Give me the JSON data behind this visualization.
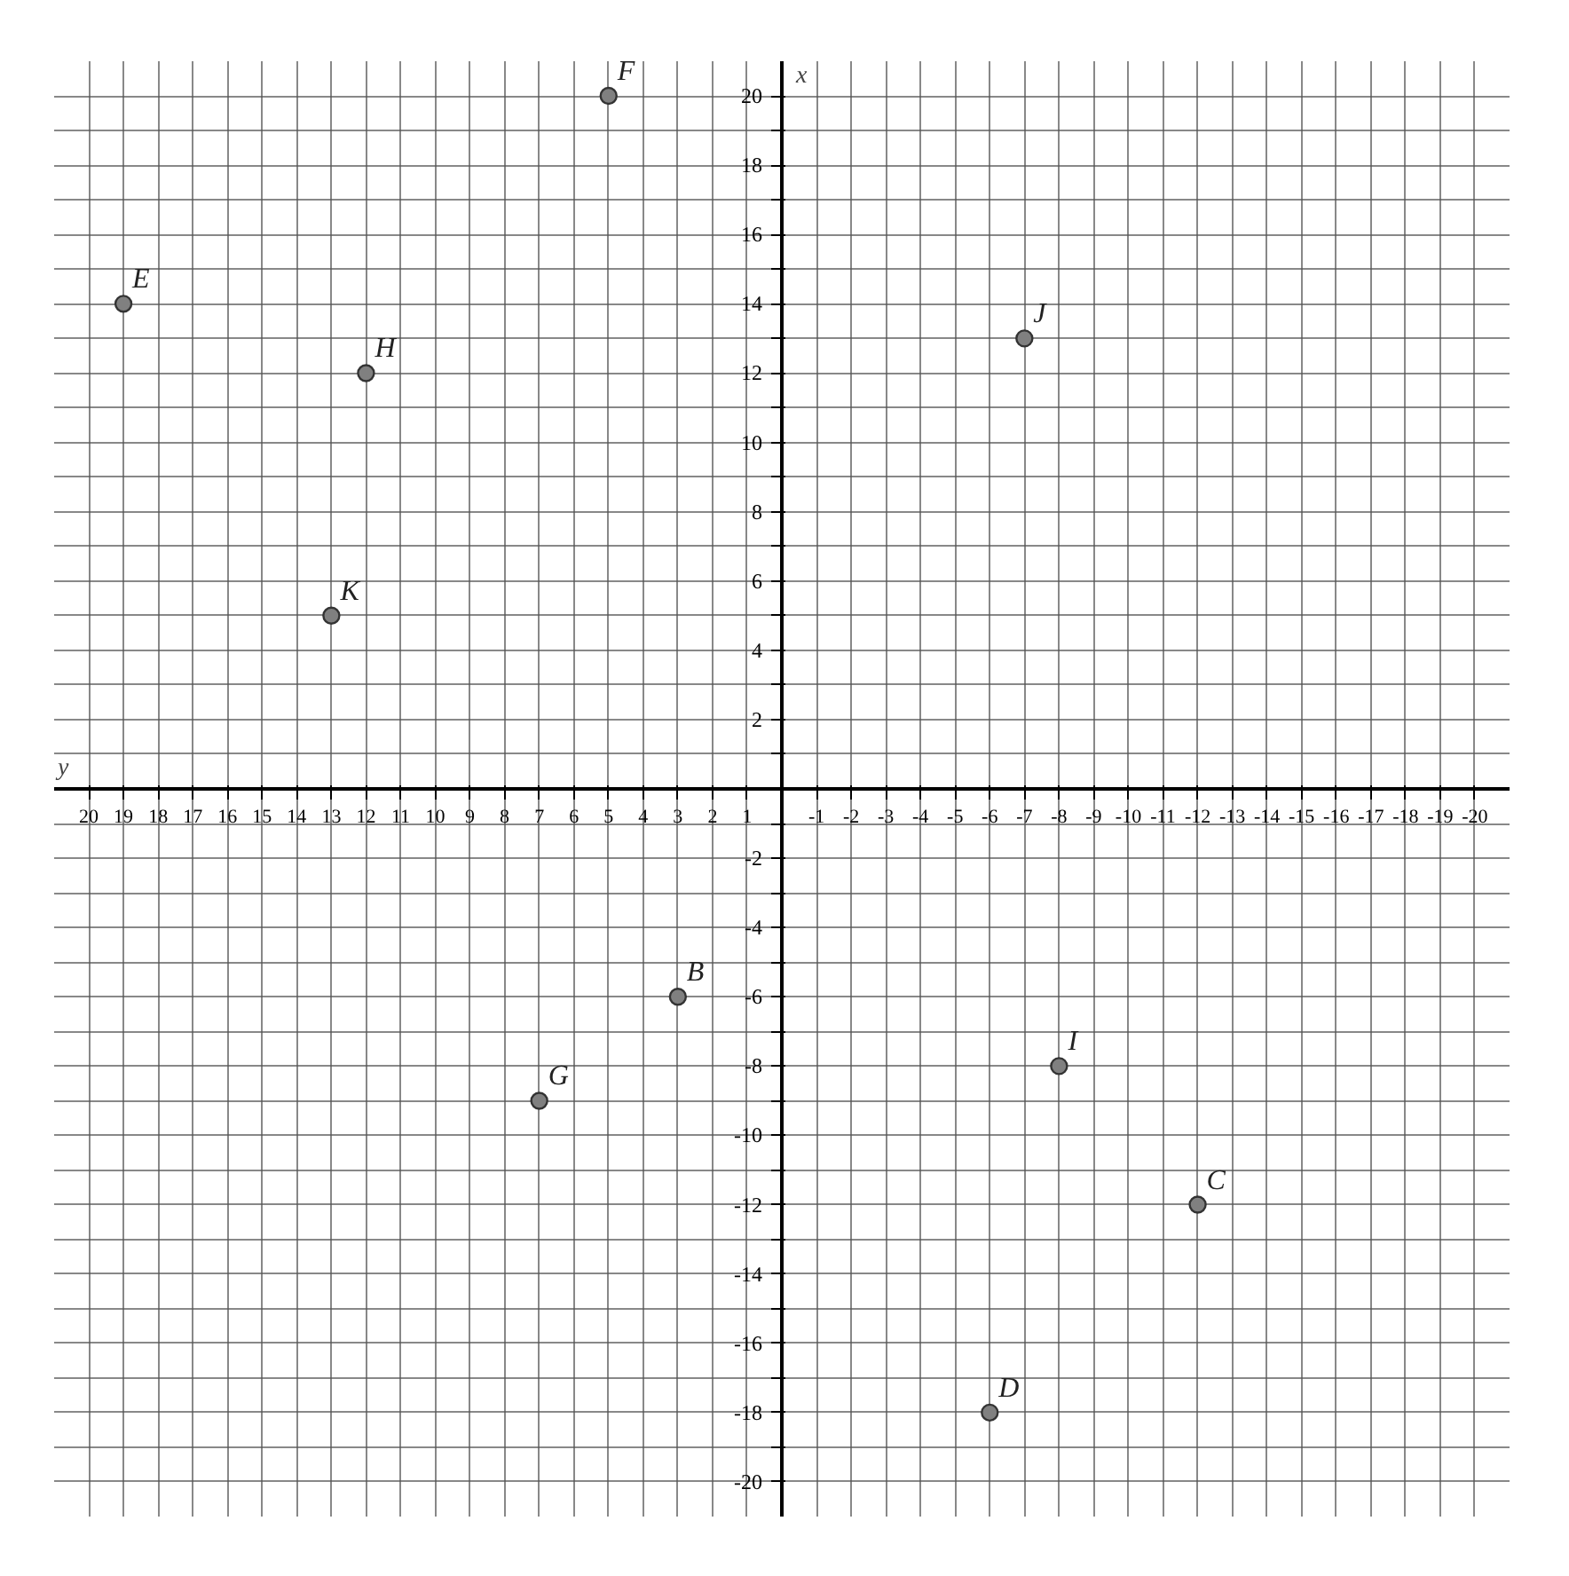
{
  "chart_data": {
    "type": "scatter",
    "xlabel": "y",
    "ylabel": "x",
    "x": [
      19,
      5,
      12,
      13,
      -7,
      3,
      7,
      -8,
      -12,
      -6
    ],
    "values": [
      14,
      20,
      12,
      5,
      13,
      -6,
      -9,
      -8,
      -12,
      -18
    ],
    "color": "#808080",
    "marker": "circle",
    "grid": true,
    "xlim": [
      21,
      -21
    ],
    "ylim": [
      -21,
      21
    ],
    "xticks": [
      20,
      19,
      18,
      17,
      16,
      15,
      14,
      13,
      12,
      11,
      10,
      9,
      8,
      7,
      6,
      5,
      4,
      3,
      2,
      1,
      -1,
      -2,
      -3,
      -4,
      -5,
      -6,
      -7,
      -8,
      -9,
      -10,
      -11,
      -12,
      -13,
      -14,
      -15,
      -16,
      -17,
      -18,
      -19,
      -20
    ],
    "yticks": [
      -20,
      {
        "value": -19,
        "label": null
      },
      -18,
      {
        "value": -17,
        "label": null
      },
      -16,
      {
        "value": -15,
        "label": null
      },
      -14,
      {
        "value": -13,
        "label": null
      },
      -12,
      {
        "value": -11,
        "label": null
      },
      -10,
      {
        "value": -9,
        "label": null
      },
      -8,
      {
        "value": -7,
        "label": null
      },
      -6,
      {
        "value": -5,
        "label": null
      },
      -4,
      {
        "value": -3,
        "label": null
      },
      -2,
      {
        "value": -1,
        "label": null
      },
      {
        "value": 1,
        "label": null
      },
      2,
      {
        "value": 3,
        "label": null
      },
      4,
      {
        "value": 5,
        "label": null
      },
      6,
      {
        "value": 7,
        "label": null
      },
      8,
      {
        "value": 9,
        "label": null
      },
      10,
      {
        "value": 11,
        "label": null
      },
      12,
      {
        "value": 13,
        "label": null
      },
      14,
      {
        "value": 15,
        "label": null
      },
      16,
      {
        "value": 17,
        "label": null
      },
      18,
      {
        "value": 19,
        "label": null
      },
      20
    ],
    "annotations": [
      {
        "text": "E",
        "x": 19,
        "y": 14
      },
      {
        "text": "F",
        "x": 5,
        "y": 20
      },
      {
        "text": "H",
        "x": 12,
        "y": 12
      },
      {
        "text": "K",
        "x": 13,
        "y": 5
      },
      {
        "text": "J",
        "x": -7,
        "y": 13
      },
      {
        "text": "B",
        "x": 3,
        "y": -6
      },
      {
        "text": "G",
        "x": 7,
        "y": -9
      },
      {
        "text": "I",
        "x": -8,
        "y": -8
      },
      {
        "text": "C",
        "x": -12,
        "y": -12
      },
      {
        "text": "D",
        "x": -6,
        "y": -18
      }
    ]
  }
}
